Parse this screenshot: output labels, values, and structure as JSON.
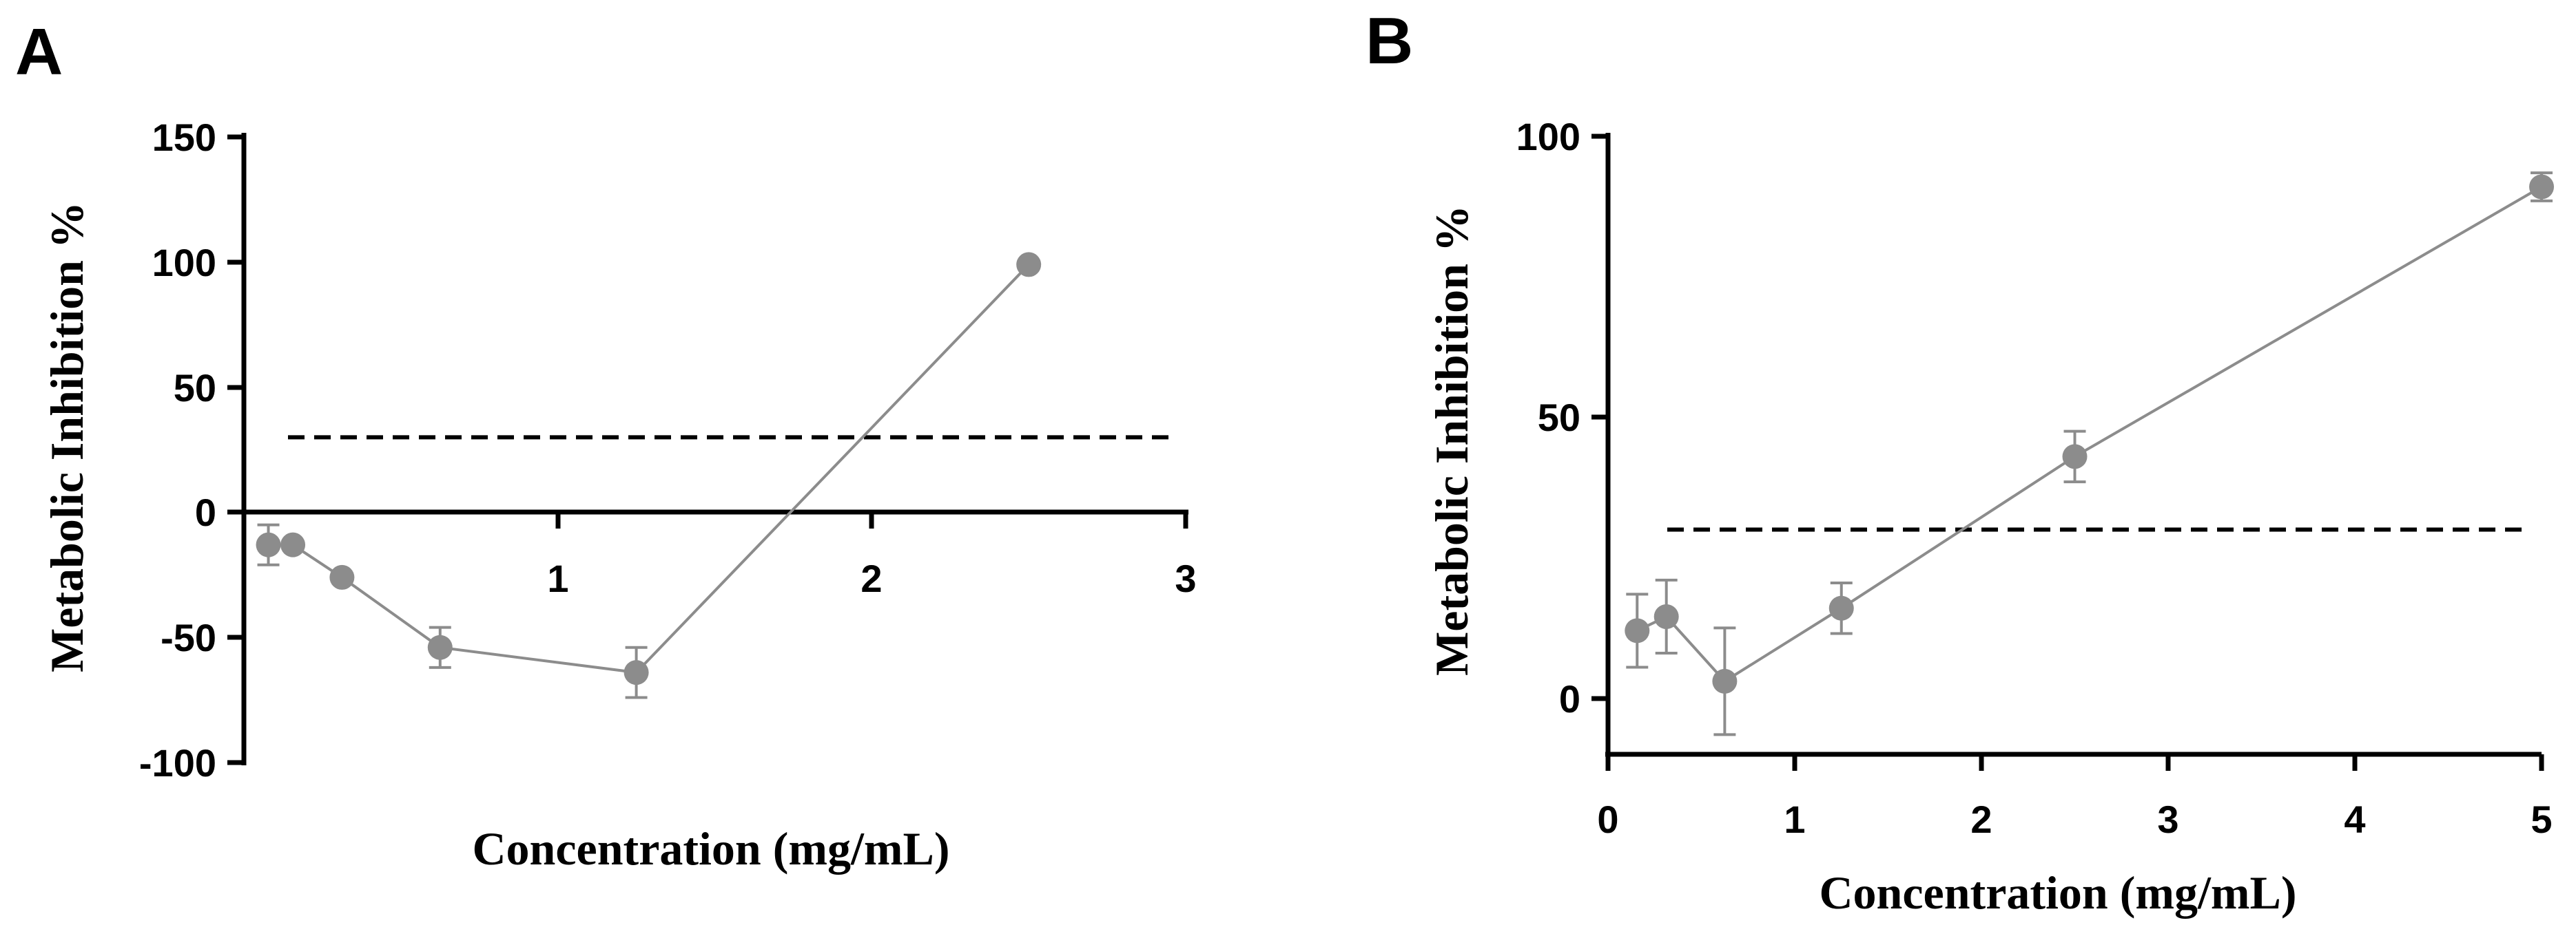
{
  "chart_data": [
    {
      "type": "line",
      "panel_label": "A",
      "title": "",
      "xlabel": "Concentration (mg/mL)",
      "ylabel": "Metabolic Inhibition %",
      "xlim": [
        0,
        3
      ],
      "ylim": [
        -100,
        150
      ],
      "x_ticks": [
        1,
        2,
        3
      ],
      "x_tick_labels": [
        "1",
        "2",
        "3"
      ],
      "y_ticks": [
        -100,
        -50,
        0,
        50,
        100,
        150
      ],
      "y_tick_labels": [
        "-100",
        "-50",
        "0",
        "50",
        "100",
        "150"
      ],
      "x_axis_at_y": 0,
      "grid": false,
      "threshold": 30,
      "series": [
        {
          "name": "Metabolic inhibition",
          "x": [
            0.078,
            0.156,
            0.3125,
            0.625,
            1.25,
            2.5
          ],
          "values": [
            -13,
            -13,
            -26,
            -54,
            -64,
            99
          ],
          "errors": [
            8,
            0,
            0,
            8,
            10,
            0
          ]
        }
      ]
    },
    {
      "type": "line",
      "panel_label": "B",
      "title": "",
      "xlabel": "Concentration (mg/mL)",
      "ylabel": "Metabolic Inhibition %",
      "xlim": [
        0,
        5
      ],
      "ylim": [
        -10,
        100
      ],
      "x_ticks": [
        0,
        1,
        2,
        3,
        4,
        5
      ],
      "x_tick_labels": [
        "0",
        "1",
        "2",
        "3",
        "4",
        "5"
      ],
      "y_ticks": [
        0,
        50,
        100
      ],
      "y_tick_labels": [
        "0",
        "50",
        "100"
      ],
      "x_axis_at_y": -10,
      "grid": false,
      "threshold": 30,
      "series": [
        {
          "name": "Metabolic inhibition",
          "x": [
            0.156,
            0.3125,
            0.625,
            1.25,
            2.5,
            5
          ],
          "values": [
            12,
            14.5,
            3,
            16,
            43,
            91
          ],
          "errors": [
            6.5,
            6.5,
            9.5,
            4.5,
            4.5,
            2.5
          ]
        }
      ]
    }
  ],
  "colors": {
    "series": "#8c8c8c",
    "axis": "#000000",
    "threshold": "#000000"
  }
}
